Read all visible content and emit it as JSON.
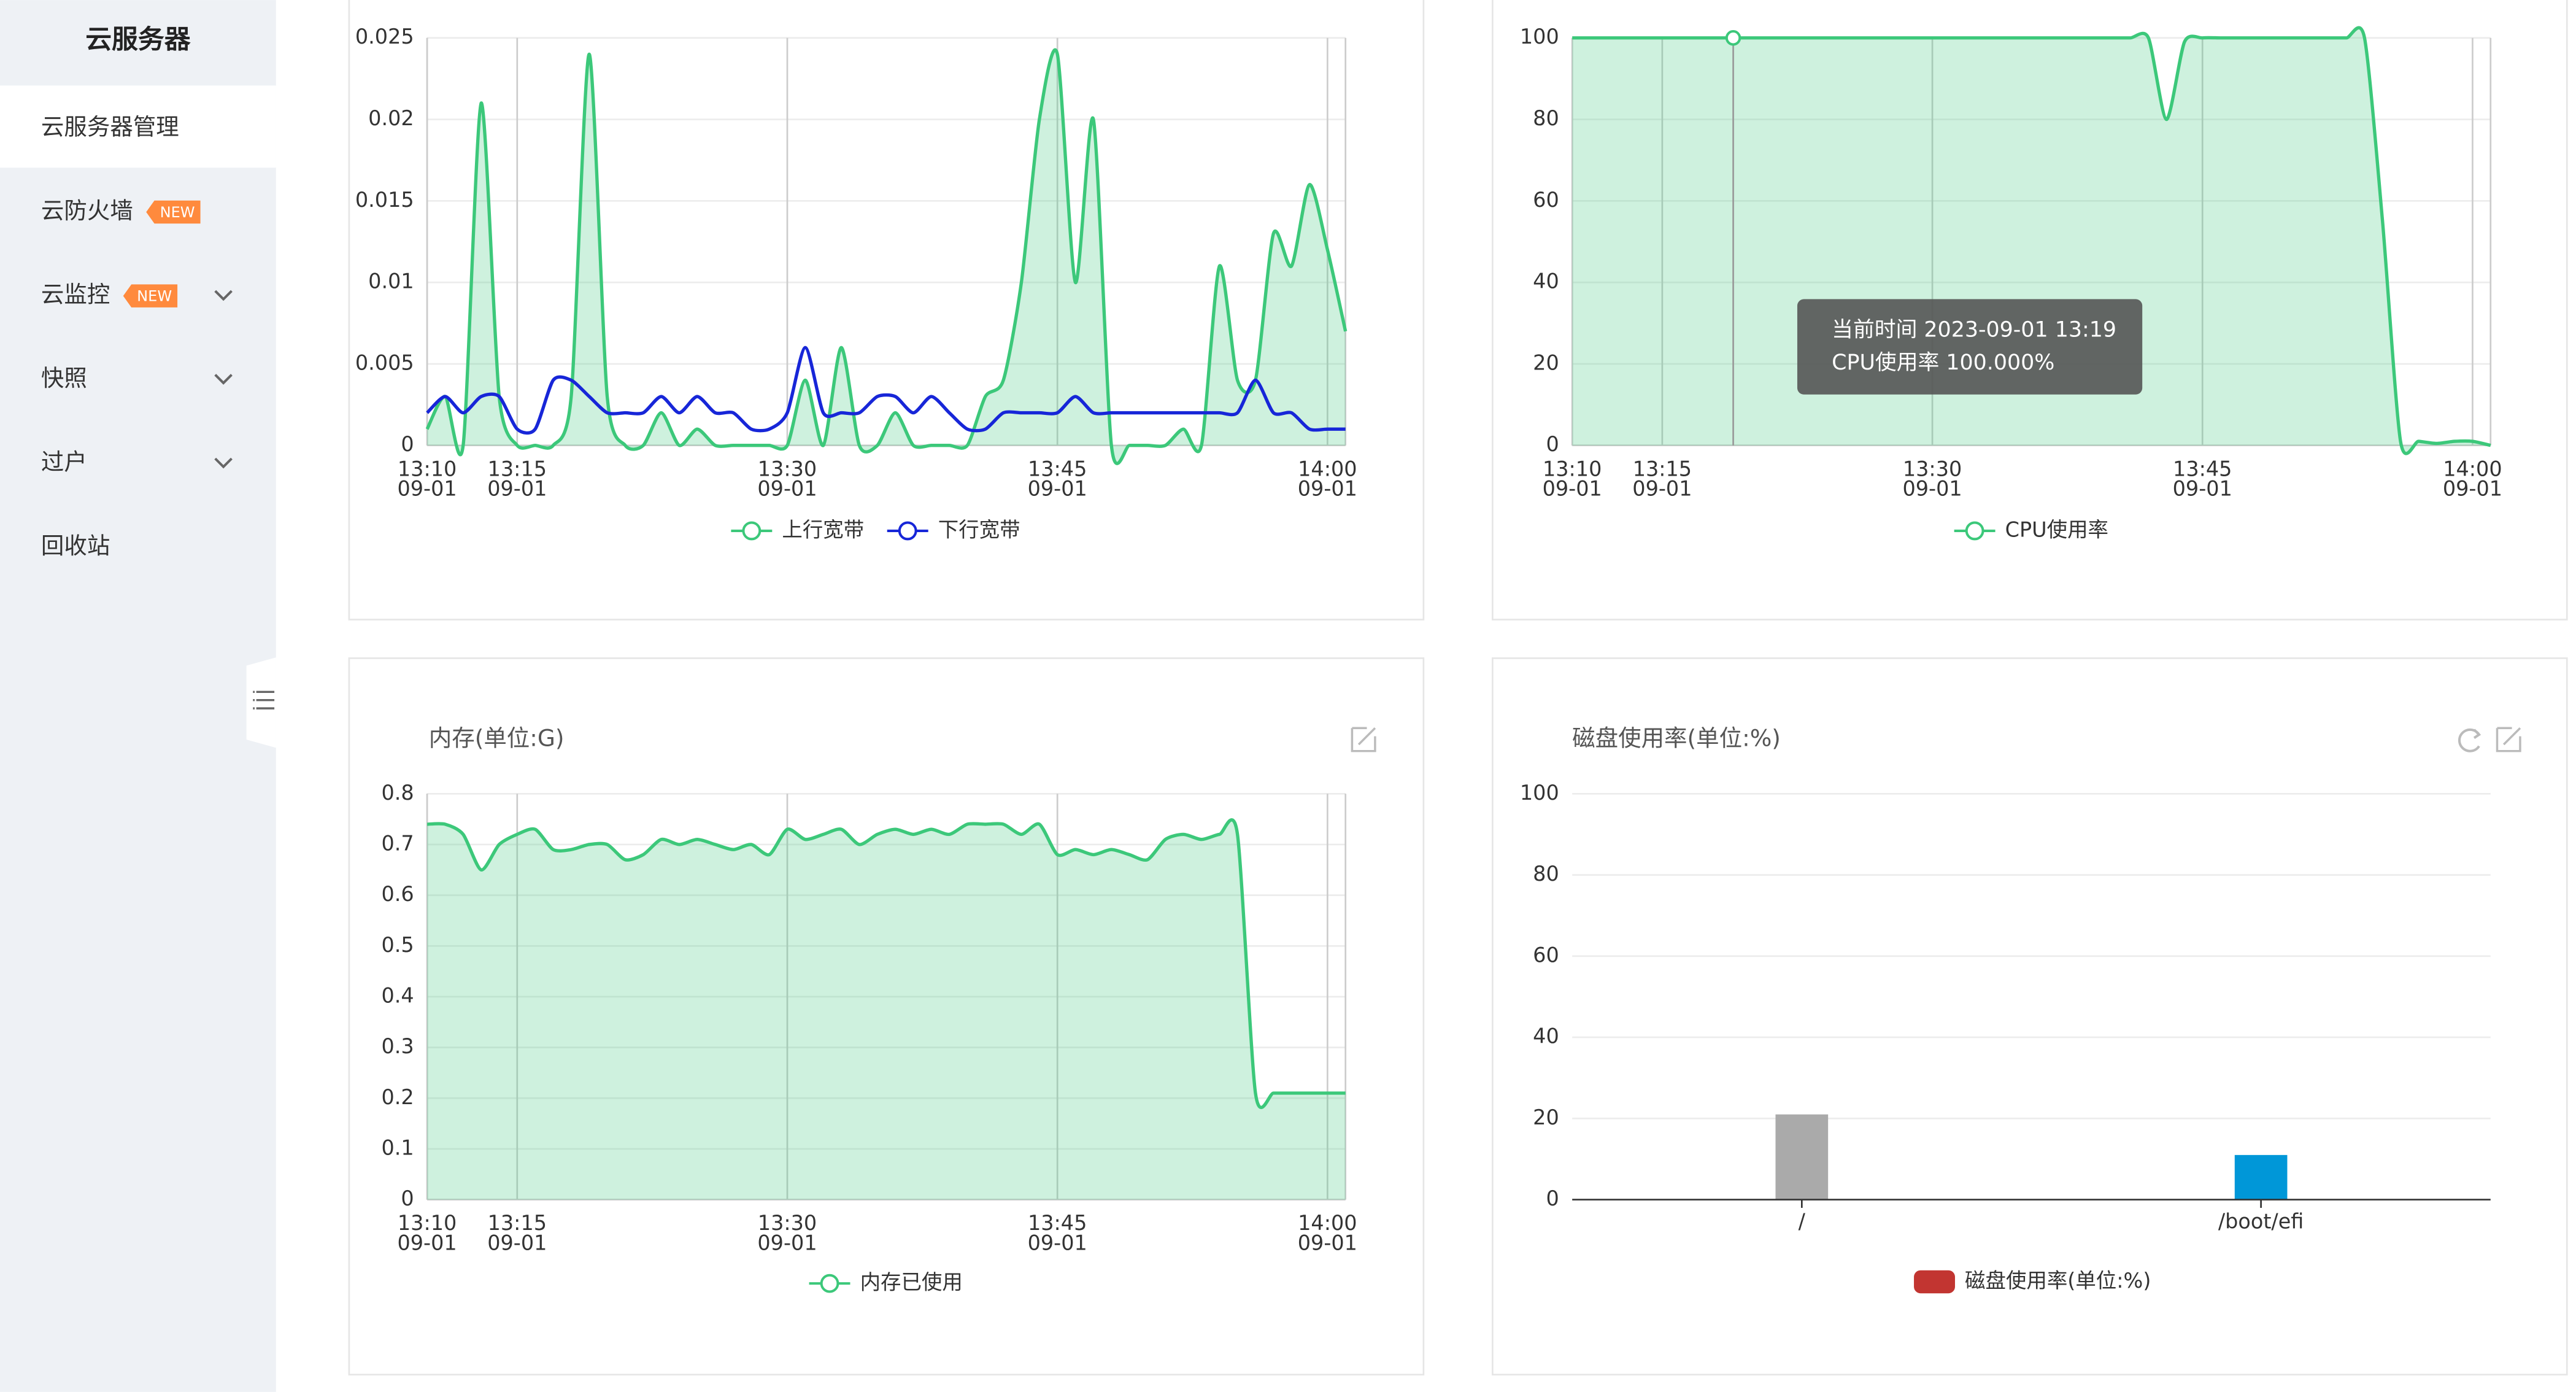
{
  "sidebar": {
    "title": "云服务器",
    "items": [
      {
        "label": "云服务器管理"
      },
      {
        "label": "云防火墙",
        "badge": "NEW"
      },
      {
        "label": "云监控",
        "badge": "NEW"
      },
      {
        "label": "快照"
      },
      {
        "label": "过户"
      },
      {
        "label": "回收站"
      }
    ]
  },
  "chart_data": [
    {
      "type": "line",
      "x": [
        "13:10",
        "13:11",
        "13:12",
        "13:13",
        "13:14",
        "13:15",
        "13:16",
        "13:17",
        "13:18",
        "13:19",
        "13:20",
        "13:21",
        "13:22",
        "13:23",
        "13:24",
        "13:25",
        "13:26",
        "13:27",
        "13:28",
        "13:29",
        "13:30",
        "13:31",
        "13:32",
        "13:33",
        "13:34",
        "13:35",
        "13:36",
        "13:37",
        "13:38",
        "13:39",
        "13:40",
        "13:41",
        "13:42",
        "13:43",
        "13:44",
        "13:45",
        "13:46",
        "13:47",
        "13:48",
        "13:49",
        "13:50",
        "13:51",
        "13:52",
        "13:53",
        "13:54",
        "13:55",
        "13:56",
        "13:57",
        "13:58",
        "13:59",
        "14:00",
        "14:01"
      ],
      "xlim": [
        "13:10",
        "14:01"
      ],
      "xticks": [
        {
          "value": "13:10",
          "label": [
            "13:10",
            "09-01"
          ]
        },
        {
          "value": "13:15",
          "label": [
            "13:15",
            "09-01"
          ]
        },
        {
          "value": "13:30",
          "label": [
            "13:30",
            "09-01"
          ]
        },
        {
          "value": "13:45",
          "label": [
            "13:45",
            "09-01"
          ]
        },
        {
          "value": "14:00",
          "label": [
            "14:00",
            "09-01"
          ]
        }
      ],
      "ylim": [
        0,
        0.025
      ],
      "yticks": [
        0,
        0.005,
        0.01,
        0.015,
        0.02,
        0.025
      ],
      "series": [
        {
          "name": "上行宽带",
          "color": "#3cc87a",
          "area": true,
          "values": [
            0.001,
            0.003,
            0,
            0.021,
            0.003,
            0,
            0,
            0,
            0.003,
            0.024,
            0.003,
            0,
            0,
            0.002,
            0,
            0.001,
            0,
            0,
            0,
            0,
            0,
            0.004,
            0,
            0.006,
            0,
            0,
            0.002,
            0,
            0,
            0,
            0,
            0.003,
            0.004,
            0.01,
            0.02,
            0.024,
            0.01,
            0.02,
            0,
            0,
            0,
            0,
            0.001,
            0,
            0.011,
            0.004,
            0.004,
            0.013,
            0.011,
            0.016,
            0.012,
            0.007
          ]
        },
        {
          "name": "下行宽带",
          "color": "#1726d8",
          "area": false,
          "values": [
            0.002,
            0.003,
            0.002,
            0.003,
            0.003,
            0.001,
            0.001,
            0.004,
            0.004,
            0.003,
            0.002,
            0.002,
            0.002,
            0.003,
            0.002,
            0.003,
            0.002,
            0.002,
            0.001,
            0.001,
            0.002,
            0.006,
            0.002,
            0.002,
            0.002,
            0.003,
            0.003,
            0.002,
            0.003,
            0.002,
            0.001,
            0.001,
            0.002,
            0.002,
            0.002,
            0.002,
            0.003,
            0.002,
            0.002,
            0.002,
            0.002,
            0.002,
            0.002,
            0.002,
            0.002,
            0.002,
            0.004,
            0.002,
            0.002,
            0.001,
            0.001,
            0.001
          ]
        }
      ]
    },
    {
      "type": "line",
      "x": [
        "13:10",
        "13:11",
        "13:12",
        "13:13",
        "13:14",
        "13:15",
        "13:16",
        "13:17",
        "13:18",
        "13:19",
        "13:20",
        "13:21",
        "13:22",
        "13:23",
        "13:24",
        "13:25",
        "13:26",
        "13:27",
        "13:28",
        "13:29",
        "13:30",
        "13:31",
        "13:32",
        "13:33",
        "13:34",
        "13:35",
        "13:36",
        "13:37",
        "13:38",
        "13:39",
        "13:40",
        "13:41",
        "13:42",
        "13:43",
        "13:44",
        "13:45",
        "13:46",
        "13:47",
        "13:48",
        "13:49",
        "13:50",
        "13:51",
        "13:52",
        "13:53",
        "13:54",
        "13:55",
        "13:56",
        "13:57",
        "13:58",
        "13:59",
        "14:00",
        "14:01"
      ],
      "xlim": [
        "13:10",
        "14:01"
      ],
      "xticks": [
        {
          "value": "13:10",
          "label": [
            "13:10",
            "09-01"
          ]
        },
        {
          "value": "13:15",
          "label": [
            "13:15",
            "09-01"
          ]
        },
        {
          "value": "13:30",
          "label": [
            "13:30",
            "09-01"
          ]
        },
        {
          "value": "13:45",
          "label": [
            "13:45",
            "09-01"
          ]
        },
        {
          "value": "14:00",
          "label": [
            "14:00",
            "09-01"
          ]
        }
      ],
      "ylim": [
        0,
        100
      ],
      "yticks": [
        0,
        20,
        40,
        60,
        80,
        100
      ],
      "tooltip": [
        "当前时间 2023-09-01 13:19",
        "CPU使用率  100.000%"
      ],
      "series": [
        {
          "name": "CPU使用率",
          "color": "#3cc87a",
          "area": true,
          "values": [
            100,
            100,
            100,
            100,
            100,
            100,
            100,
            100,
            100,
            100,
            100,
            100,
            100,
            100,
            100,
            100,
            100,
            100,
            100,
            100,
            100,
            100,
            100,
            100,
            100,
            100,
            100,
            100,
            100,
            100,
            100,
            100,
            100,
            80,
            99,
            100,
            100,
            100,
            100,
            100,
            100,
            100,
            100,
            100,
            100,
            55,
            1,
            1,
            0.5,
            1,
            1,
            0
          ]
        }
      ]
    },
    {
      "type": "line",
      "title": "内存(单位:G)",
      "x": [
        "13:10",
        "13:11",
        "13:12",
        "13:13",
        "13:14",
        "13:15",
        "13:16",
        "13:17",
        "13:18",
        "13:19",
        "13:20",
        "13:21",
        "13:22",
        "13:23",
        "13:24",
        "13:25",
        "13:26",
        "13:27",
        "13:28",
        "13:29",
        "13:30",
        "13:31",
        "13:32",
        "13:33",
        "13:34",
        "13:35",
        "13:36",
        "13:37",
        "13:38",
        "13:39",
        "13:40",
        "13:41",
        "13:42",
        "13:43",
        "13:44",
        "13:45",
        "13:46",
        "13:47",
        "13:48",
        "13:49",
        "13:50",
        "13:51",
        "13:52",
        "13:53",
        "13:54",
        "13:55",
        "13:56",
        "13:57",
        "13:58",
        "13:59",
        "14:00",
        "14:01"
      ],
      "xlim": [
        "13:10",
        "14:01"
      ],
      "xticks": [
        {
          "value": "13:10",
          "label": [
            "13:10",
            "09-01"
          ]
        },
        {
          "value": "13:15",
          "label": [
            "13:15",
            "09-01"
          ]
        },
        {
          "value": "13:30",
          "label": [
            "13:30",
            "09-01"
          ]
        },
        {
          "value": "13:45",
          "label": [
            "13:45",
            "09-01"
          ]
        },
        {
          "value": "14:00",
          "label": [
            "14:00",
            "09-01"
          ]
        }
      ],
      "ylim": [
        0,
        0.8
      ],
      "yticks": [
        0,
        0.1,
        0.2,
        0.3,
        0.4,
        0.5,
        0.6,
        0.7,
        0.8
      ],
      "series": [
        {
          "name": "内存已使用",
          "color": "#3cc87a",
          "area": true,
          "values": [
            0.74,
            0.74,
            0.72,
            0.65,
            0.7,
            0.72,
            0.73,
            0.69,
            0.69,
            0.7,
            0.7,
            0.67,
            0.68,
            0.71,
            0.7,
            0.71,
            0.7,
            0.69,
            0.7,
            0.68,
            0.73,
            0.71,
            0.72,
            0.73,
            0.7,
            0.72,
            0.73,
            0.72,
            0.73,
            0.72,
            0.74,
            0.74,
            0.74,
            0.72,
            0.74,
            0.68,
            0.69,
            0.68,
            0.69,
            0.68,
            0.67,
            0.71,
            0.72,
            0.71,
            0.72,
            0.72,
            0.21,
            0.21,
            0.21,
            0.21,
            0.21,
            0.21
          ]
        }
      ]
    },
    {
      "type": "bar",
      "title": "磁盘使用率(单位:%)",
      "categories": [
        "/",
        "/boot/efi"
      ],
      "ylim": [
        0,
        100
      ],
      "yticks": [
        0,
        20,
        40,
        60,
        80,
        100
      ],
      "series": [
        {
          "name": "磁盘使用率(单位:%)",
          "color": "#c23531",
          "bar_colors": [
            "#aaaaaa",
            "#0097d8"
          ],
          "values": [
            21,
            11
          ]
        }
      ]
    }
  ]
}
